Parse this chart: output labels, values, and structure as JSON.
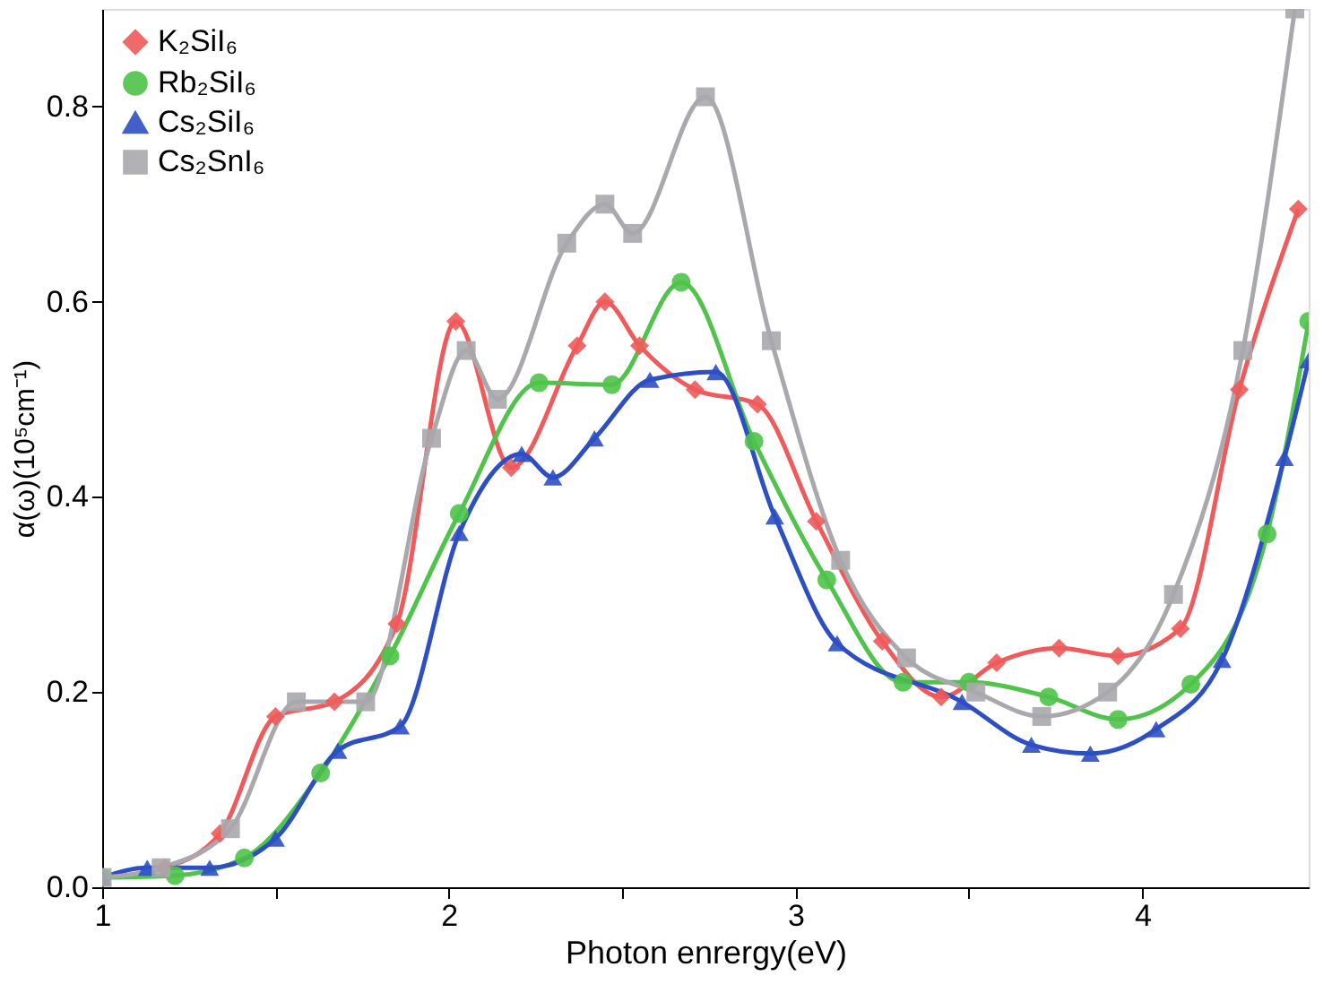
{
  "chart_data": {
    "type": "line",
    "xlabel": "Photon enrergy(eV)",
    "ylabel": "α(ω)(10⁵cm⁻¹)",
    "xlim": [
      1,
      4.48
    ],
    "ylim": [
      0,
      0.9
    ],
    "xticks": [
      1,
      {
        "value": 1.5,
        "label": null
      },
      2,
      {
        "value": 2.5,
        "label": null
      },
      3,
      {
        "value": 3.5,
        "label": null
      },
      4
    ],
    "yticks": [
      {
        "value": 0,
        "label": "0.0"
      },
      {
        "value": 0.2,
        "label": "0.2"
      },
      {
        "value": 0.4,
        "label": "0.4"
      },
      {
        "value": 0.6,
        "label": "0.6"
      },
      {
        "value": 0.8,
        "label": "0.8"
      }
    ],
    "legend": "top left",
    "grid": false,
    "line_style": "solid",
    "series": [
      {
        "name": "K₂SiI₆",
        "color": "#f05a5a",
        "marker": "diamond",
        "x": [
          1.0,
          1.18,
          1.34,
          1.5,
          1.67,
          1.85,
          2.02,
          2.18,
          2.37,
          2.45,
          2.55,
          2.71,
          2.89,
          3.06,
          3.25,
          3.42,
          3.58,
          3.76,
          3.93,
          4.11,
          4.28,
          4.45
        ],
        "values": [
          0.01,
          0.02,
          0.055,
          0.175,
          0.19,
          0.27,
          0.58,
          0.43,
          0.555,
          0.6,
          0.555,
          0.51,
          0.495,
          0.375,
          0.252,
          0.195,
          0.23,
          0.245,
          0.237,
          0.265,
          0.51,
          0.695
        ]
      },
      {
        "name": "Rb₂SiI₆",
        "color": "#4fc34a",
        "marker": "circle",
        "x": [
          1.0,
          1.21,
          1.41,
          1.63,
          1.83,
          2.03,
          2.26,
          2.47,
          2.67,
          2.88,
          3.09,
          3.31,
          3.5,
          3.73,
          3.93,
          4.14,
          4.36,
          4.48
        ],
        "values": [
          0.01,
          0.012,
          0.03,
          0.117,
          0.237,
          0.383,
          0.517,
          0.515,
          0.62,
          0.457,
          0.315,
          0.21,
          0.21,
          0.195,
          0.172,
          0.208,
          0.362,
          0.58
        ]
      },
      {
        "name": "Cs₂SiI₆",
        "color": "#2e4fc4",
        "marker": "triangle",
        "x": [
          1.0,
          1.13,
          1.31,
          1.5,
          1.68,
          1.86,
          2.03,
          2.21,
          2.3,
          2.42,
          2.58,
          2.77,
          2.94,
          3.12,
          3.48,
          3.68,
          3.85,
          4.04,
          4.23,
          4.41,
          4.48
        ],
        "values": [
          0.01,
          0.02,
          0.02,
          0.05,
          0.14,
          0.165,
          0.363,
          0.444,
          0.42,
          0.46,
          0.52,
          0.528,
          0.38,
          0.25,
          0.19,
          0.146,
          0.137,
          0.162,
          0.233,
          0.44,
          0.54
        ]
      },
      {
        "name": "Cs₂SnI₆",
        "color": "#a8a8ad",
        "marker": "square",
        "x": [
          1.0,
          1.17,
          1.37,
          1.56,
          1.76,
          1.95,
          2.05,
          2.14,
          2.34,
          2.45,
          2.53,
          2.74,
          2.93,
          3.13,
          3.32,
          3.52,
          3.71,
          3.9,
          4.09,
          4.29,
          4.44
        ],
        "values": [
          0.01,
          0.02,
          0.06,
          0.19,
          0.19,
          0.46,
          0.55,
          0.5,
          0.66,
          0.7,
          0.67,
          0.81,
          0.56,
          0.335,
          0.235,
          0.2,
          0.175,
          0.2,
          0.3,
          0.55,
          0.9
        ]
      }
    ]
  }
}
